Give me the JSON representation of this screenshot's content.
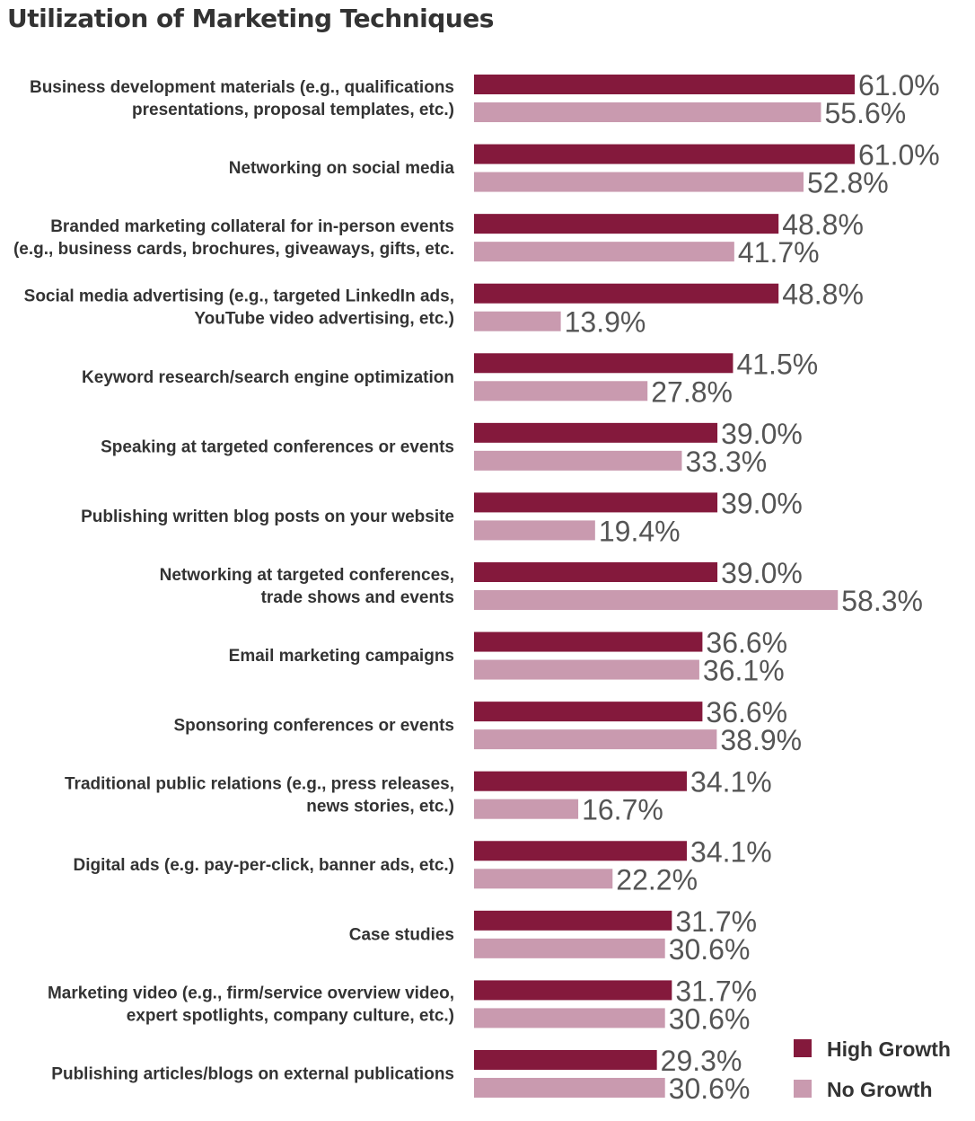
{
  "chart_data": {
    "type": "bar",
    "orientation": "horizontal",
    "title": "Utilization of Marketing Techniques",
    "xlabel": "",
    "ylabel": "",
    "xlim": [
      0,
      61
    ],
    "value_suffix": "%",
    "grid": false,
    "legend_position": "bottom-right",
    "categories": [
      "Business development materials (e.g., qualifications presentations, proposal templates, etc.)",
      "Networking on social media",
      "Branded marketing collateral for in-person events (e.g., business cards, brochures, giveaways, gifts, etc.",
      "Social media advertising (e.g., targeted LinkedIn ads, YouTube video advertising, etc.)",
      "Keyword research/search engine optimization",
      "Speaking at targeted conferences or events",
      "Publishing written blog posts on your website",
      "Networking at targeted conferences, trade shows and events",
      "Email marketing campaigns",
      "Sponsoring conferences or events",
      "Traditional public relations (e.g., press releases, news stories, etc.)",
      "Digital ads (e.g. pay-per-click, banner ads, etc.)",
      "Case studies",
      "Marketing video (e.g., firm/service overview video, expert spotlights, company culture, etc.)",
      "Publishing articles/blogs on external publications"
    ],
    "category_lines": [
      [
        "Business development materials (e.g., qualifications",
        "presentations, proposal templates, etc.)"
      ],
      [
        "Networking on social media"
      ],
      [
        "Branded marketing collateral for in-person events",
        "(e.g., business cards, brochures, giveaways, gifts, etc."
      ],
      [
        "Social media advertising (e.g., targeted LinkedIn ads,",
        "YouTube video advertising, etc.)"
      ],
      [
        "Keyword research/search engine optimization"
      ],
      [
        "Speaking at targeted conferences or events"
      ],
      [
        "Publishing written blog posts on your website"
      ],
      [
        "Networking at targeted conferences,",
        "trade shows and events"
      ],
      [
        "Email marketing campaigns"
      ],
      [
        "Sponsoring conferences or events"
      ],
      [
        "Traditional public relations (e.g., press releases,",
        "news stories, etc.)"
      ],
      [
        "Digital ads (e.g. pay-per-click, banner ads, etc.)"
      ],
      [
        "Case studies"
      ],
      [
        "Marketing video (e.g., firm/service overview video,",
        "expert spotlights, company culture, etc.)"
      ],
      [
        "Publishing articles/blogs on external publications"
      ]
    ],
    "series": [
      {
        "name": "High Growth",
        "color": "#84193c",
        "values": [
          61.0,
          61.0,
          48.8,
          48.8,
          41.5,
          39.0,
          39.0,
          39.0,
          36.6,
          36.6,
          34.1,
          34.1,
          31.7,
          31.7,
          29.3
        ]
      },
      {
        "name": "No Growth",
        "color": "#c99aaf",
        "values": [
          55.6,
          52.8,
          41.7,
          13.9,
          27.8,
          33.3,
          19.4,
          58.3,
          36.1,
          38.9,
          16.7,
          22.2,
          30.6,
          30.6,
          30.6
        ]
      }
    ]
  }
}
